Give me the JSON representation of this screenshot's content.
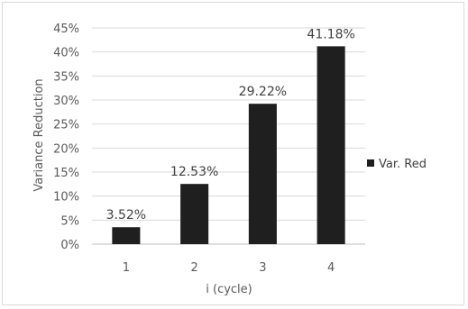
{
  "chart_data": {
    "type": "bar",
    "categories": [
      "1",
      "2",
      "3",
      "4"
    ],
    "series": [
      {
        "name": "Var. Red",
        "values": [
          3.52,
          12.53,
          29.22,
          41.18
        ],
        "color": "#1f1f1f"
      }
    ],
    "data_labels": [
      "3.52%",
      "12.53%",
      "29.22%",
      "41.18%"
    ],
    "xlabel": "i (cycle)",
    "ylabel": "Variance Reduction",
    "ylim": [
      0,
      45
    ],
    "y_ticks": [
      0,
      5,
      10,
      15,
      20,
      25,
      30,
      35,
      40,
      45
    ],
    "y_tick_labels": [
      "0%",
      "5%",
      "10%",
      "15%",
      "20%",
      "25%",
      "30%",
      "35%",
      "40%",
      "45%"
    ],
    "grid": true,
    "legend_position": "right"
  }
}
